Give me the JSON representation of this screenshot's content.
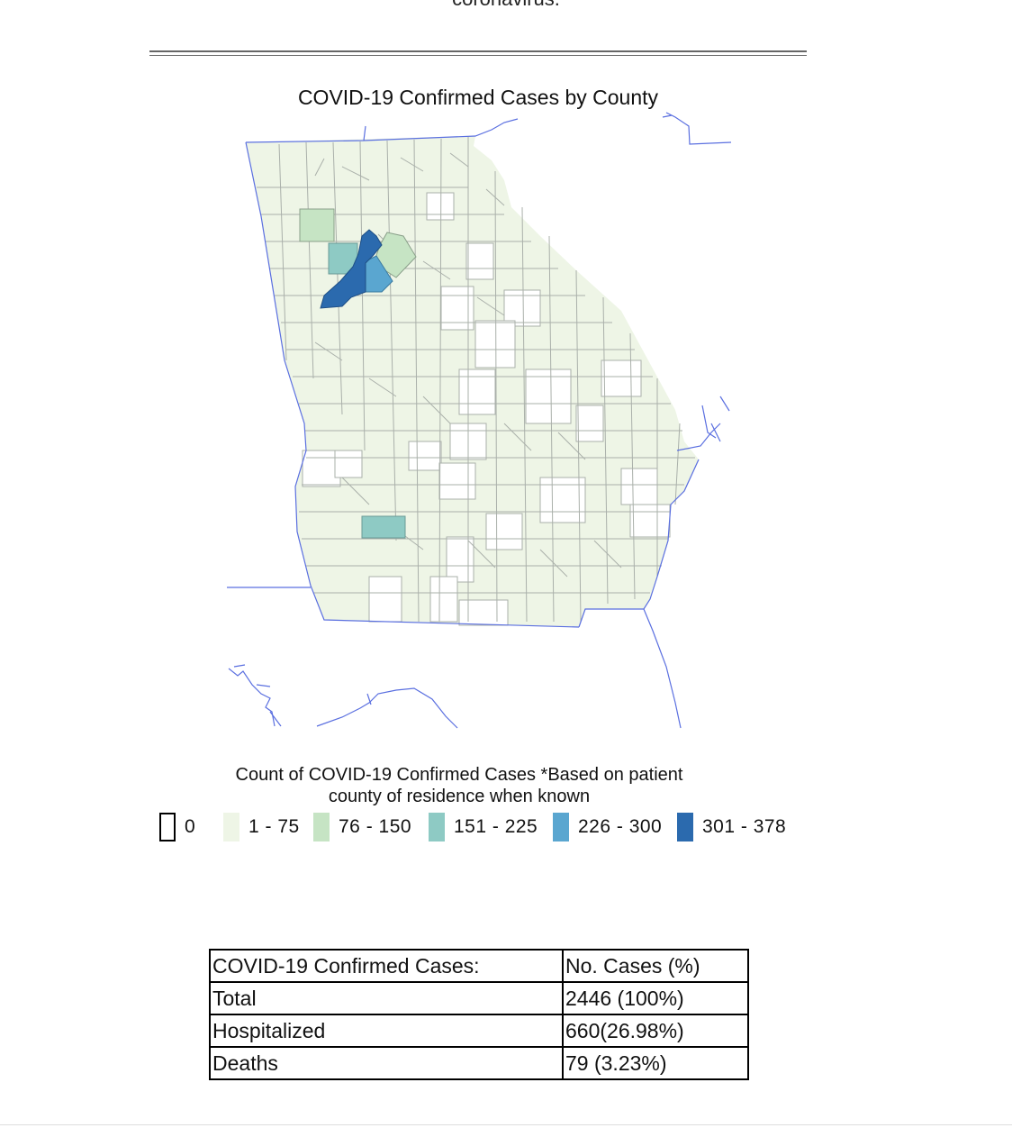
{
  "page": {
    "top_text": "coronavirus."
  },
  "map": {
    "title": "COVID-19 Confirmed Cases by County",
    "state_outline_color": "#5a6fe0",
    "county_border_color": "#aab0aa",
    "colors": {
      "none": "#ffffff",
      "low": "#eef5e6",
      "c76_150": "#c6e4c4",
      "c151_225": "#8ecac4",
      "c226_300": "#5aa6d0",
      "c301_378": "#2b6aae"
    }
  },
  "legend": {
    "title_line1": "Count of COVID-19 Confirmed Cases *Based on patient",
    "title_line2": "county of residence when known",
    "items": [
      {
        "label": "0",
        "color": "#ffffff"
      },
      {
        "label": "1 - 75",
        "color": "#eef5e6"
      },
      {
        "label": "76 - 150",
        "color": "#c6e4c4"
      },
      {
        "label": "151 - 225",
        "color": "#8ecac4"
      },
      {
        "label": "226 - 300",
        "color": "#5aa6d0"
      },
      {
        "label": "301 - 378",
        "color": "#2b6aae"
      }
    ]
  },
  "table": {
    "header": {
      "label": "COVID-19 Confirmed Cases:",
      "value": "No. Cases (%)"
    },
    "rows": [
      {
        "label": "Total",
        "value": "2446 (100%)"
      },
      {
        "label": "Hospitalized",
        "value": "660(26.98%)"
      },
      {
        "label": "Deaths",
        "value": "79 (3.23%)"
      }
    ]
  }
}
